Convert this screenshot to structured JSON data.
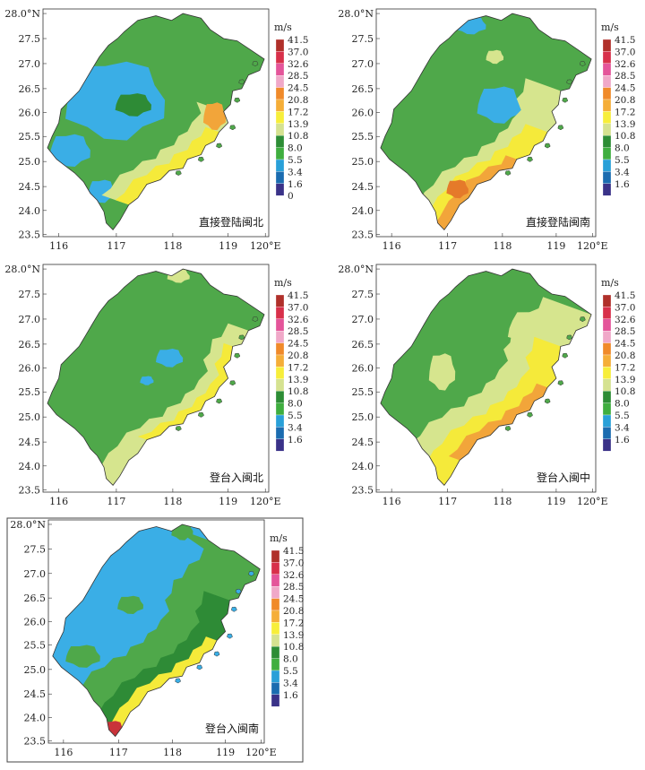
{
  "axes": {
    "y_ticks": [
      "28.0°N",
      "27.5",
      "27.0",
      "26.5",
      "26.0",
      "25.5",
      "25.0",
      "24.5",
      "24.0",
      "23.5"
    ],
    "x_ticks": [
      "116",
      "117",
      "118",
      "119",
      "120°E"
    ]
  },
  "legend": {
    "unit": "m/s",
    "values_with_zero": [
      "41.5",
      "37.0",
      "32.6",
      "28.5",
      "24.5",
      "20.8",
      "17.2",
      "13.9",
      "10.8",
      "8.0",
      "5.5",
      "3.4",
      "1.6",
      "0"
    ],
    "values": [
      "41.5",
      "37.0",
      "32.6",
      "28.5",
      "24.5",
      "20.8",
      "17.2",
      "13.9",
      "10.8",
      "8.0",
      "5.5",
      "3.4",
      "1.6"
    ],
    "colors": [
      "#b0302a",
      "#d8304a",
      "#e4559a",
      "#f0a8c8",
      "#f08a2a",
      "#f5ae38",
      "#f7ee3a",
      "#d5e290",
      "#2d8d35",
      "#3fae3f",
      "#29a0d8",
      "#1b6cb0",
      "#3a3288"
    ]
  },
  "panels": [
    {
      "id": "p1",
      "label": "直接登陆闽北"
    },
    {
      "id": "p2",
      "label": "直接登陆闽南"
    },
    {
      "id": "p3",
      "label": "登台入闽北"
    },
    {
      "id": "p4",
      "label": "登台入闽中"
    },
    {
      "id": "p5",
      "label": "登台入闽南"
    }
  ],
  "colors": {
    "green": "#4fa84a",
    "dark_green": "#2e8b36",
    "blue": "#3aaee6",
    "light_green": "#d6e58e",
    "yellow": "#f5ea3a",
    "orange": "#f2a53a",
    "dark_orange": "#e57a2a",
    "red": "#c9333a"
  }
}
